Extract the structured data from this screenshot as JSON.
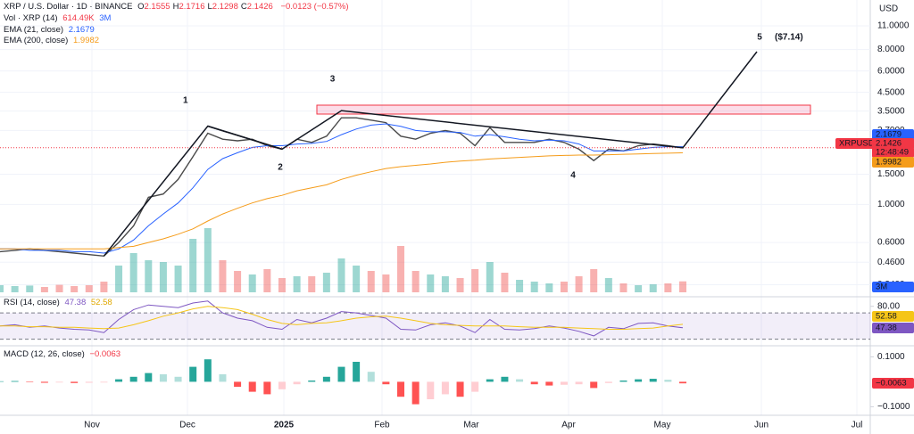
{
  "header": {
    "symbol": "XRP / U.S. Dollar · 1D · BINANCE",
    "ohlc": [
      {
        "key": "O",
        "value": "2.1555"
      },
      {
        "key": "H",
        "value": "2.1716"
      },
      {
        "key": "L",
        "value": "2.1298"
      },
      {
        "key": "C",
        "value": "2.1426"
      }
    ],
    "change": "−0.0123 (−0.57%)"
  },
  "annotations": {
    "wave_labels": [
      "1",
      "2",
      "3",
      "4",
      "5"
    ],
    "target": "($7.14)"
  },
  "chart_data": [
    {
      "type": "line",
      "axis_unit": "USD",
      "log_scale": true,
      "grid": true,
      "ylim": [
        0.3,
        13
      ],
      "yticks": [
        {
          "value": 11,
          "label": "11.0000"
        },
        {
          "value": 8,
          "label": "8.0000"
        },
        {
          "value": 6,
          "label": "6.0000"
        },
        {
          "value": 4.5,
          "label": "4.5000"
        },
        {
          "value": 3.5,
          "label": "3.5000"
        },
        {
          "value": 2.7,
          "label": "2.7000"
        },
        {
          "value": 1.5,
          "label": "1.5000"
        },
        {
          "value": 1,
          "label": "1.0000"
        },
        {
          "value": 0.6,
          "label": "0.6000"
        },
        {
          "value": 0.46,
          "label": "0.4600"
        },
        {
          "value": 0.34,
          "label": "0.3400"
        }
      ],
      "xtick_labels": [
        "Nov",
        "Dec",
        "2025",
        "Feb",
        "Mar",
        "Apr",
        "May",
        "Jun",
        "Jul"
      ],
      "last_price_label": "2.1426",
      "countdown": "12:48:49",
      "series": [
        {
          "name": "XRPUSD",
          "color": "#4a4a4a",
          "values": [
            0.53,
            0.54,
            0.55,
            0.54,
            0.53,
            0.52,
            0.51,
            0.5,
            0.6,
            0.75,
            1.1,
            1.15,
            1.4,
            1.9,
            2.6,
            2.4,
            2.35,
            2.4,
            2.2,
            2.1,
            2.4,
            2.3,
            2.5,
            3.2,
            3.2,
            3.1,
            3.0,
            2.5,
            2.4,
            2.6,
            2.7,
            2.6,
            2.2,
            2.8,
            2.3,
            2.3,
            2.3,
            2.4,
            2.3,
            2.1,
            1.8,
            2.1,
            2.05,
            2.2,
            2.25,
            2.2,
            2.14
          ]
        },
        {
          "name": "EMA (21, close)",
          "color": "#2962ff",
          "last_label": "2.1679",
          "values": [
            0.55,
            0.55,
            0.54,
            0.54,
            0.54,
            0.53,
            0.53,
            0.52,
            0.55,
            0.62,
            0.75,
            0.88,
            1.02,
            1.25,
            1.6,
            1.85,
            2.0,
            2.15,
            2.2,
            2.2,
            2.25,
            2.27,
            2.33,
            2.55,
            2.75,
            2.9,
            2.95,
            2.85,
            2.7,
            2.65,
            2.65,
            2.63,
            2.5,
            2.55,
            2.48,
            2.4,
            2.35,
            2.37,
            2.35,
            2.25,
            2.05,
            2.05,
            2.05,
            2.1,
            2.15,
            2.17,
            2.17
          ]
        },
        {
          "name": "EMA (200, close)",
          "color": "#f59c1a",
          "last_label": "1.9982",
          "values": [
            0.55,
            0.55,
            0.55,
            0.55,
            0.55,
            0.55,
            0.55,
            0.55,
            0.56,
            0.57,
            0.6,
            0.63,
            0.67,
            0.72,
            0.8,
            0.88,
            0.95,
            1.02,
            1.08,
            1.13,
            1.2,
            1.25,
            1.3,
            1.4,
            1.48,
            1.55,
            1.62,
            1.66,
            1.69,
            1.72,
            1.76,
            1.79,
            1.81,
            1.84,
            1.86,
            1.88,
            1.9,
            1.92,
            1.93,
            1.94,
            1.94,
            1.95,
            1.96,
            1.97,
            1.98,
            1.99,
            2.0
          ]
        }
      ]
    },
    {
      "type": "bar",
      "legend": "Vol · XRP (14)",
      "last_label": "614.49K",
      "ma_label": "3M",
      "ylim": [
        0,
        4000000
      ],
      "values": [
        400000,
        350000,
        380000,
        300000,
        420000,
        350000,
        400000,
        600000,
        1500000,
        2200000,
        1800000,
        1700000,
        1500000,
        3000000,
        3600000,
        1800000,
        1200000,
        1000000,
        1300000,
        800000,
        900000,
        900000,
        1100000,
        1900000,
        1500000,
        1200000,
        1000000,
        2600000,
        1200000,
        1000000,
        900000,
        800000,
        1300000,
        1700000,
        1100000,
        700000,
        600000,
        500000,
        600000,
        900000,
        1300000,
        800000,
        500000,
        400000,
        450000,
        500000,
        614490
      ]
    },
    {
      "type": "line",
      "legend": "RSI (14, close)",
      "ylim": [
        20,
        85
      ],
      "yticks": [
        {
          "value": 80,
          "label": "80.00"
        }
      ],
      "bands": [
        30,
        70
      ],
      "series": [
        {
          "color": "#7e57c2",
          "last_label": "47.38",
          "values": [
            50,
            52,
            48,
            50,
            47,
            45,
            44,
            40,
            60,
            75,
            82,
            80,
            78,
            85,
            88,
            70,
            62,
            58,
            48,
            45,
            60,
            55,
            62,
            72,
            70,
            66,
            62,
            45,
            44,
            52,
            55,
            50,
            40,
            60,
            45,
            44,
            46,
            50,
            47,
            42,
            35,
            48,
            46,
            54,
            55,
            50,
            47.38
          ]
        },
        {
          "color": "#f5c518",
          "last_label": "52.58",
          "values": [
            50,
            50,
            49,
            49,
            48,
            48,
            47,
            46,
            47,
            52,
            58,
            65,
            70,
            76,
            80,
            78,
            75,
            68,
            60,
            54,
            52,
            54,
            55,
            58,
            62,
            64,
            65,
            62,
            58,
            54,
            52,
            51,
            50,
            50,
            50,
            49,
            48,
            48,
            48,
            47,
            46,
            45,
            45,
            46,
            47,
            50,
            52.58
          ]
        }
      ]
    },
    {
      "type": "bar",
      "legend": "MACD (12, 26, close)",
      "last_label": "−0.0063",
      "ylim": [
        -0.12,
        0.13
      ],
      "yticks": [
        {
          "value": 0.1,
          "label": "0.1000"
        },
        {
          "value": -0.1,
          "label": "−0.1000"
        }
      ],
      "values": [
        0.002,
        0.003,
        -0.002,
        -0.004,
        -0.003,
        -0.005,
        -0.004,
        -0.003,
        0.01,
        0.02,
        0.035,
        0.03,
        0.02,
        0.06,
        0.09,
        0.03,
        -0.02,
        -0.04,
        -0.05,
        -0.03,
        -0.01,
        0.005,
        0.02,
        0.06,
        0.08,
        0.04,
        -0.01,
        -0.06,
        -0.09,
        -0.07,
        -0.05,
        -0.06,
        -0.04,
        0.01,
        0.02,
        0.01,
        -0.01,
        -0.015,
        -0.012,
        -0.01,
        -0.025,
        -0.005,
        0.005,
        0.01,
        0.012,
        0.008,
        -0.0063
      ]
    }
  ]
}
